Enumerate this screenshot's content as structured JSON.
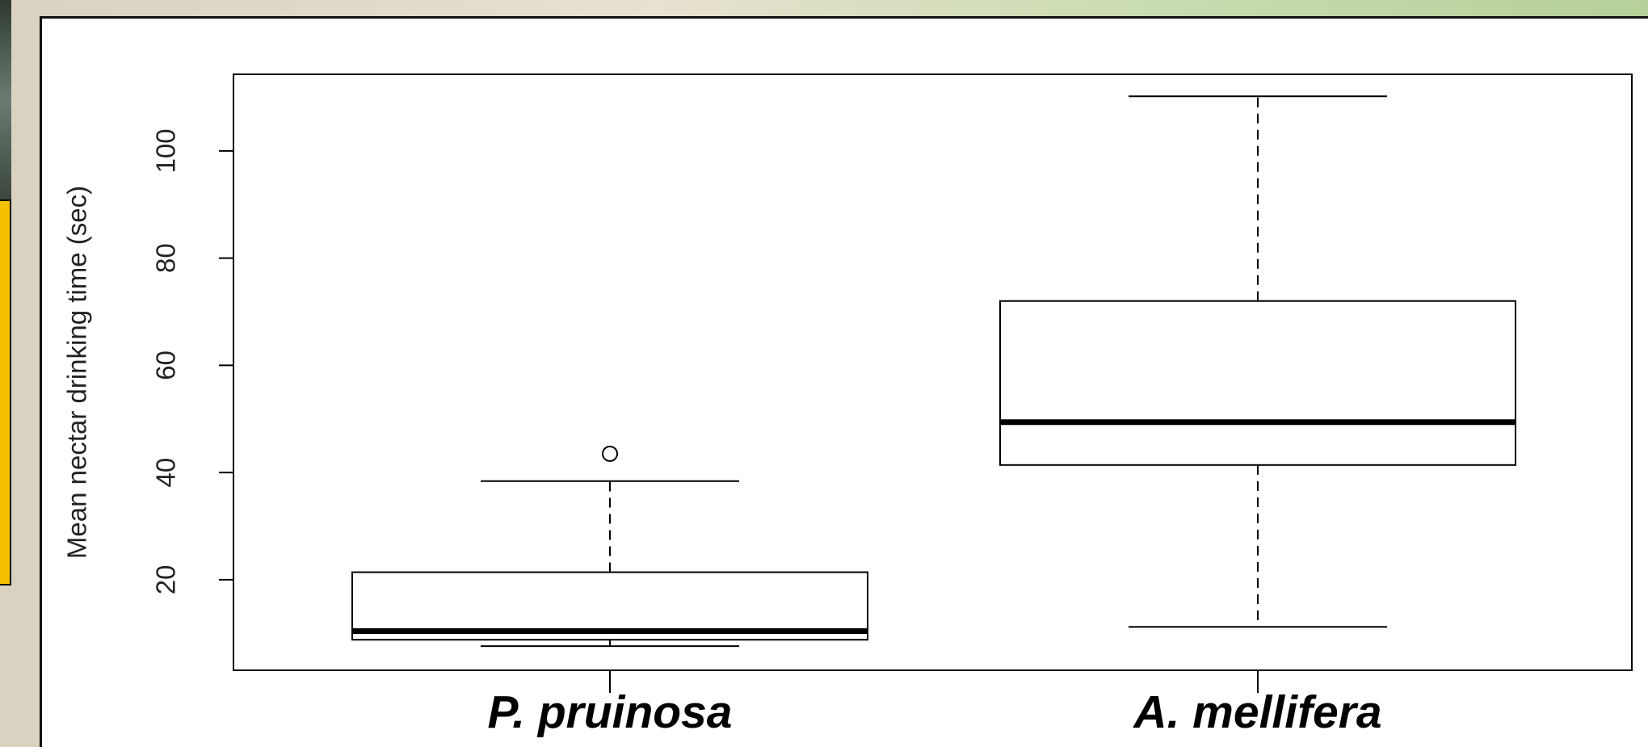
{
  "chart_data": {
    "type": "box",
    "y_label": "Mean nectar drinking time (sec)",
    "categories": [
      "P. pruinosa",
      "A. mellifera"
    ],
    "boxes": [
      {
        "whisker_low": 7.6,
        "q1": 8.8,
        "median": 10.4,
        "q3": 21.4,
        "whisker_high": 38.4,
        "outliers": [
          43.5
        ]
      },
      {
        "whisker_low": 11.2,
        "q1": 41.4,
        "median": 49.4,
        "q3": 72.0,
        "whisker_high": 110.2,
        "outliers": []
      }
    ],
    "ylim": [
      3.1,
      114.3
    ],
    "yticks": [
      20,
      40,
      60,
      80,
      100
    ],
    "color": "#000000"
  }
}
